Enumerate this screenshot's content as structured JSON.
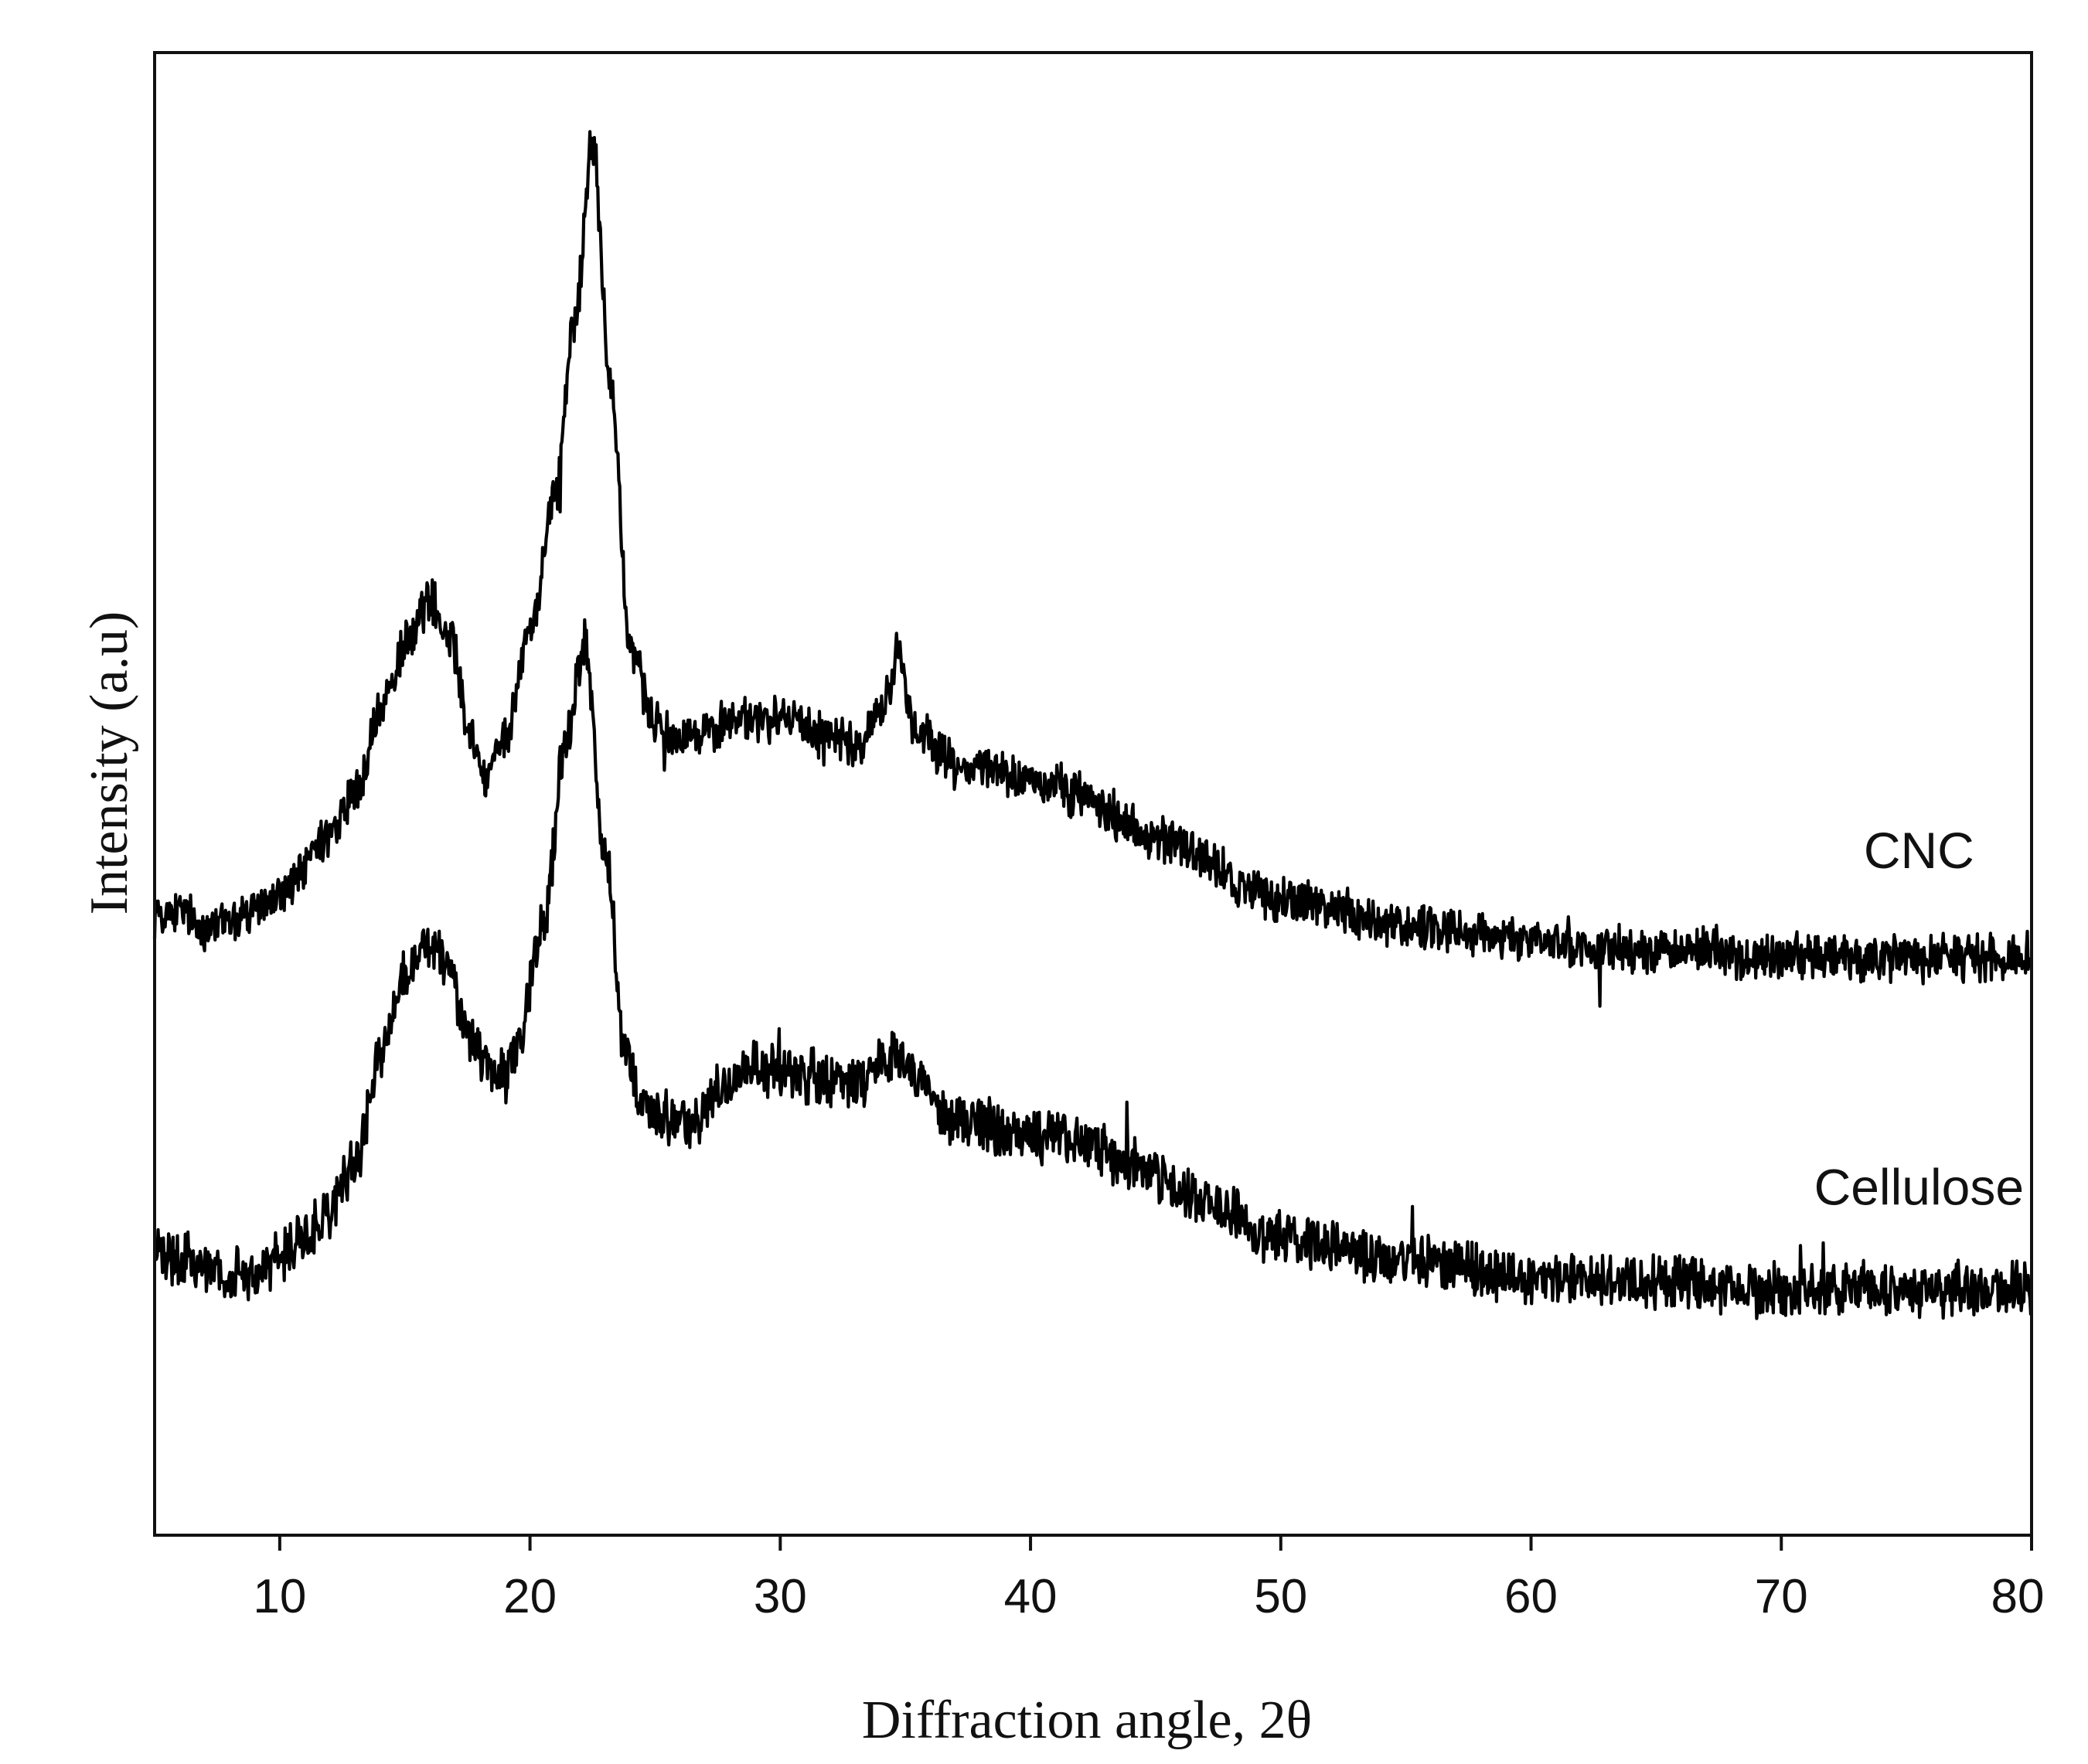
{
  "chart_data": {
    "type": "line",
    "title": "",
    "xlabel": "Diffraction angle, 2θ",
    "ylabel": "Intensity (a.u)",
    "xlim": [
      5,
      80
    ],
    "ylim": [
      0,
      100
    ],
    "xticks": [
      10,
      20,
      30,
      40,
      50,
      60,
      70,
      80
    ],
    "xtick_labels": [
      "10",
      "20",
      "30",
      "40",
      "50",
      "60",
      "70",
      "80"
    ],
    "yticks_shown": false,
    "grid": false,
    "legend": "inline labels at right",
    "series": [
      {
        "name": "CNC",
        "color": "#000000",
        "noise": 1.3,
        "x": [
          5,
          6,
          7,
          8,
          9,
          10,
          11,
          12,
          13,
          14,
          15,
          16,
          16.8,
          17.5,
          18.2,
          19,
          20,
          21,
          21.8,
          22.5,
          23.2,
          24,
          25,
          26,
          27,
          28,
          30,
          32,
          33,
          34,
          34.7,
          35.5,
          37,
          40,
          42,
          45,
          50,
          55,
          60,
          65,
          70,
          75,
          80
        ],
        "values": [
          42,
          42,
          41,
          41.5,
          42,
          43,
          45,
          47,
          50,
          55,
          60,
          63,
          61,
          55,
          51,
          54,
          61,
          70,
          82,
          94,
          78,
          60,
          55,
          54,
          54,
          55,
          55,
          54,
          53,
          56,
          59,
          54,
          52,
          51,
          50,
          47,
          43,
          41,
          40,
          39.5,
          39,
          39,
          39
        ]
      },
      {
        "name": "Cellulose",
        "color": "#000000",
        "noise": 1.5,
        "x": [
          5,
          6,
          7,
          8,
          9,
          10,
          11,
          12,
          13,
          14,
          15,
          15.8,
          16.5,
          17.5,
          18.5,
          19,
          19.5,
          20.5,
          21.5,
          22.2,
          23,
          23.8,
          24.5,
          25.5,
          26.5,
          27.5,
          29,
          31,
          33,
          34.5,
          35.5,
          37,
          40,
          42,
          44,
          47,
          50,
          55,
          60,
          65,
          70,
          75,
          80
        ],
        "values": [
          19,
          18.5,
          18,
          17.5,
          18,
          19,
          20,
          22,
          25,
          32,
          38,
          40,
          39,
          34,
          31,
          31,
          33,
          41,
          54,
          60,
          46,
          33,
          29,
          28,
          27.5,
          30,
          31.5,
          31,
          30.5,
          32,
          30.5,
          28,
          27,
          26.5,
          25,
          22.5,
          20,
          18.5,
          17.5,
          17,
          16.5,
          16.5,
          16.5
        ]
      }
    ],
    "annotations": [
      {
        "text": "CNC",
        "x": 75.5,
        "y": 45
      },
      {
        "text": "Cellulose",
        "x": 75.5,
        "y": 22.3
      }
    ]
  }
}
